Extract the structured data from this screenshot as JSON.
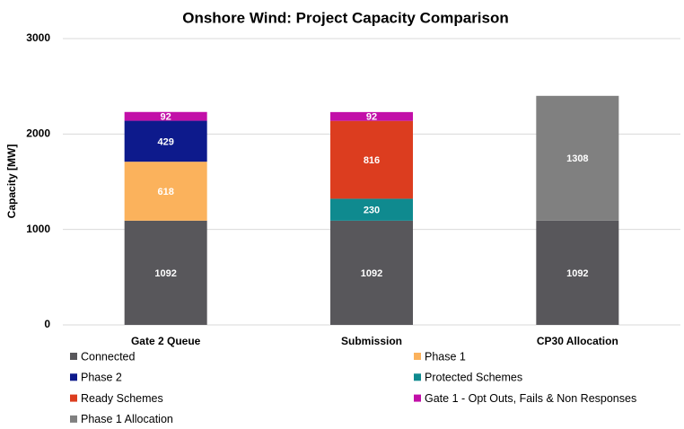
{
  "chart_data": {
    "type": "stacked_bar",
    "title": "Onshore Wind: Project Capacity Comparison",
    "y_label": "Capacity [MW]",
    "categories": [
      "Gate 2 Queue",
      "Submission",
      "CP30 Allocation"
    ],
    "series": [
      {
        "name": "Connected",
        "color": "#58575b",
        "values": [
          1092,
          1092,
          1092
        ]
      },
      {
        "name": "Phase 1",
        "color": "#fbb25c",
        "values": [
          618,
          null,
          null
        ]
      },
      {
        "name": "Phase 2",
        "color": "#0d1a8c",
        "values": [
          429,
          null,
          null
        ]
      },
      {
        "name": "Protected Schemes",
        "color": "#0f8a8f",
        "values": [
          null,
          230,
          null
        ]
      },
      {
        "name": "Ready Schemes",
        "color": "#dc3d1f",
        "values": [
          null,
          816,
          null
        ]
      },
      {
        "name": "Gate 1 - Opt Outs, Fails & Non Responses",
        "color": "#c20fa8",
        "values": [
          92,
          92,
          null
        ]
      },
      {
        "name": "Phase 1 Allocation",
        "color": "#808080",
        "values": [
          null,
          null,
          1308
        ]
      }
    ],
    "ylim": [
      0,
      3000
    ],
    "yticks": [
      0,
      1000,
      2000,
      3000
    ],
    "grid": true,
    "legend": "bottom"
  }
}
